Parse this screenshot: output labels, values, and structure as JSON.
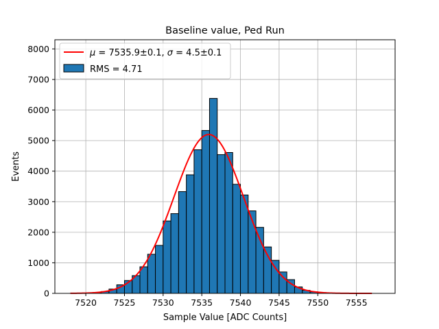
{
  "chart_data": {
    "type": "bar",
    "title": "Baseline value, Ped Run",
    "xlabel": "Sample Value [ADC Counts]",
    "ylabel": "Events",
    "xlim": [
      7516,
      7560
    ],
    "ylim": [
      0,
      8300
    ],
    "xticks": [
      7520,
      7525,
      7530,
      7535,
      7540,
      7545,
      7550,
      7555
    ],
    "yticks": [
      0,
      1000,
      2000,
      3000,
      4000,
      5000,
      6000,
      7000,
      8000
    ],
    "grid": true,
    "legend_position": "upper-left",
    "bin_width": 1,
    "histogram": {
      "name": "RMS = 4.71",
      "bin_starts": [
        7518,
        7519,
        7520,
        7521,
        7522,
        7523,
        7524,
        7525,
        7526,
        7527,
        7528,
        7529,
        7530,
        7531,
        7532,
        7533,
        7534,
        7535,
        7536,
        7537,
        7538,
        7539,
        7540,
        7541,
        7542,
        7543,
        7544,
        7545,
        7546,
        7547,
        7548,
        7549,
        7550,
        7551,
        7552,
        7553,
        7554,
        7555,
        7556
      ],
      "counts": [
        2,
        5,
        10,
        25,
        60,
        140,
        280,
        420,
        580,
        870,
        1280,
        1570,
        2370,
        2610,
        3330,
        3880,
        4700,
        5330,
        6380,
        4540,
        4610,
        3570,
        3220,
        2700,
        2160,
        1520,
        1080,
        700,
        450,
        210,
        100,
        50,
        25,
        12,
        5,
        3,
        1,
        1,
        1
      ],
      "color": "#1f77b4",
      "edge_color": "#000000"
    },
    "fit": {
      "name": "$\\mu = 7535.9\\pm0.1$, $\\sigma = 4.5\\pm0.1$",
      "label_parts": [
        "μ",
        " = 7535.9±0.1, ",
        "σ",
        " = 4.5±0.1"
      ],
      "mu": 7535.9,
      "sigma": 4.5,
      "amplitude": 5200,
      "x_range": [
        7518,
        7557
      ],
      "color": "#ff0000"
    }
  }
}
